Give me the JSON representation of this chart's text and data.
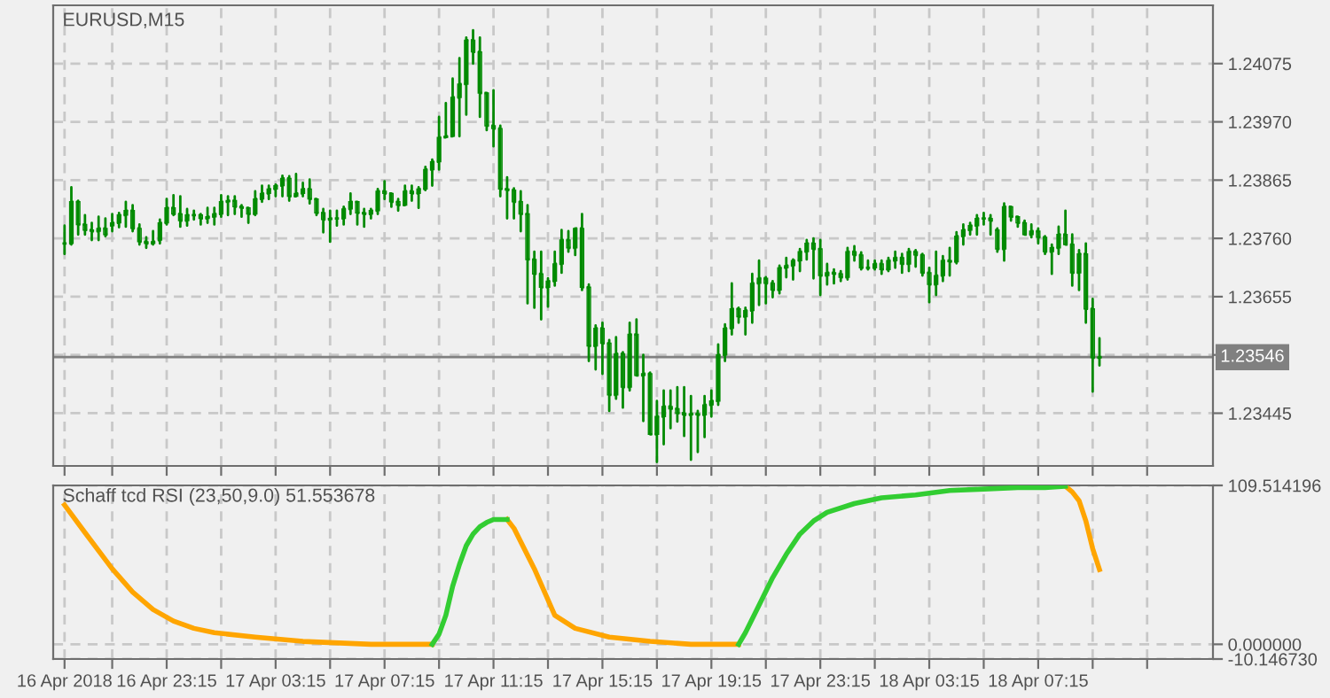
{
  "chart_data": [
    {
      "type": "candlestick",
      "title": "EURUSD,M15",
      "color": "#008a00",
      "grid": true,
      "tick_labels": "y",
      "x": [
        "2018-04-16T19:30",
        "2018-04-16T19:45",
        "2018-04-16T20:00",
        "2018-04-16T20:15",
        "2018-04-16T20:30",
        "2018-04-16T20:45",
        "2018-04-16T21:00",
        "2018-04-16T21:15",
        "2018-04-16T21:30",
        "2018-04-16T21:45",
        "2018-04-16T22:00",
        "2018-04-16T22:15",
        "2018-04-16T22:30",
        "2018-04-16T22:45",
        "2018-04-16T23:00",
        "2018-04-16T23:15",
        "2018-04-16T23:30",
        "2018-04-16T23:45",
        "2018-04-17T00:00",
        "2018-04-17T00:15",
        "2018-04-17T00:30",
        "2018-04-17T00:45",
        "2018-04-17T01:00",
        "2018-04-17T01:15",
        "2018-04-17T01:30",
        "2018-04-17T01:45",
        "2018-04-17T02:00",
        "2018-04-17T02:15",
        "2018-04-17T02:30",
        "2018-04-17T02:45",
        "2018-04-17T03:00",
        "2018-04-17T03:15",
        "2018-04-17T03:30",
        "2018-04-17T03:45",
        "2018-04-17T04:00",
        "2018-04-17T04:15",
        "2018-04-17T04:30",
        "2018-04-17T04:45",
        "2018-04-17T05:00",
        "2018-04-17T05:15",
        "2018-04-17T05:30",
        "2018-04-17T05:45",
        "2018-04-17T06:00",
        "2018-04-17T06:15",
        "2018-04-17T06:30",
        "2018-04-17T06:45",
        "2018-04-17T07:00",
        "2018-04-17T07:15",
        "2018-04-17T07:30",
        "2018-04-17T07:45",
        "2018-04-17T08:00",
        "2018-04-17T08:15",
        "2018-04-17T08:30",
        "2018-04-17T08:45",
        "2018-04-17T09:00",
        "2018-04-17T09:15",
        "2018-04-17T09:30",
        "2018-04-17T09:45",
        "2018-04-17T10:00",
        "2018-04-17T10:15",
        "2018-04-17T10:30",
        "2018-04-17T10:45",
        "2018-04-17T11:00",
        "2018-04-17T11:15",
        "2018-04-17T11:30",
        "2018-04-17T11:45",
        "2018-04-17T12:00",
        "2018-04-17T12:15",
        "2018-04-17T12:30",
        "2018-04-17T12:45",
        "2018-04-17T13:00",
        "2018-04-17T13:15",
        "2018-04-17T13:30",
        "2018-04-17T13:45",
        "2018-04-17T14:00",
        "2018-04-17T14:15",
        "2018-04-17T14:30",
        "2018-04-17T14:45",
        "2018-04-17T15:00",
        "2018-04-17T15:15",
        "2018-04-17T15:30",
        "2018-04-17T15:45",
        "2018-04-17T16:00",
        "2018-04-17T16:15",
        "2018-04-17T16:30",
        "2018-04-17T16:45",
        "2018-04-17T17:00",
        "2018-04-17T17:15",
        "2018-04-17T17:30",
        "2018-04-17T17:45",
        "2018-04-17T18:00",
        "2018-04-17T18:15",
        "2018-04-17T18:30",
        "2018-04-17T18:45",
        "2018-04-17T19:00",
        "2018-04-17T19:15",
        "2018-04-17T19:30",
        "2018-04-17T19:45",
        "2018-04-17T20:00",
        "2018-04-17T20:15",
        "2018-04-17T20:30",
        "2018-04-17T20:45",
        "2018-04-17T21:00",
        "2018-04-17T21:15",
        "2018-04-17T21:30",
        "2018-04-17T21:45",
        "2018-04-17T22:00",
        "2018-04-17T22:15",
        "2018-04-17T22:30",
        "2018-04-17T22:45",
        "2018-04-17T23:00",
        "2018-04-17T23:15",
        "2018-04-17T23:30",
        "2018-04-17T23:45",
        "2018-04-18T00:00",
        "2018-04-18T00:15",
        "2018-04-18T00:30",
        "2018-04-18T00:45",
        "2018-04-18T01:00",
        "2018-04-18T01:15",
        "2018-04-18T01:30",
        "2018-04-18T01:45",
        "2018-04-18T02:00",
        "2018-04-18T02:15",
        "2018-04-18T02:30",
        "2018-04-18T02:45",
        "2018-04-18T03:00",
        "2018-04-18T03:15",
        "2018-04-18T03:30",
        "2018-04-18T03:45",
        "2018-04-18T04:00",
        "2018-04-18T04:15",
        "2018-04-18T04:30",
        "2018-04-18T04:45",
        "2018-04-18T05:00",
        "2018-04-18T05:15",
        "2018-04-18T05:30",
        "2018-04-18T05:45",
        "2018-04-18T06:00",
        "2018-04-18T06:15",
        "2018-04-18T06:30",
        "2018-04-18T06:45",
        "2018-04-18T07:00",
        "2018-04-18T07:15",
        "2018-04-18T07:30",
        "2018-04-18T07:45",
        "2018-04-18T08:00",
        "2018-04-18T08:15",
        "2018-04-18T08:30",
        "2018-04-18T08:45",
        "2018-04-18T09:00",
        "2018-04-18T09:15",
        "2018-04-18T09:30"
      ],
      "ohlc": [
        [
          1.23751,
          1.23783,
          1.23732,
          1.23751
        ],
        [
          1.23751,
          1.23852,
          1.23749,
          1.23826
        ],
        [
          1.23826,
          1.23828,
          1.23767,
          1.23785
        ],
        [
          1.23785,
          1.23802,
          1.23767,
          1.23775
        ],
        [
          1.23775,
          1.23788,
          1.23757,
          1.23773
        ],
        [
          1.23773,
          1.23799,
          1.23757,
          1.23778
        ],
        [
          1.23778,
          1.23796,
          1.23764,
          1.23767
        ],
        [
          1.23783,
          1.23804,
          1.23773,
          1.23788
        ],
        [
          1.23788,
          1.23806,
          1.2378,
          1.23802
        ],
        [
          1.23802,
          1.23826,
          1.23781,
          1.2381
        ],
        [
          1.2381,
          1.2382,
          1.23773,
          1.23778
        ],
        [
          1.23778,
          1.23785,
          1.23749,
          1.23754
        ],
        [
          1.23754,
          1.23762,
          1.23743,
          1.23751
        ],
        [
          1.23751,
          1.23773,
          1.23749,
          1.23754
        ],
        [
          1.23757,
          1.23794,
          1.23751,
          1.23788
        ],
        [
          1.23788,
          1.23831,
          1.23785,
          1.23815
        ],
        [
          1.23815,
          1.23838,
          1.23802,
          1.23804
        ],
        [
          1.23804,
          1.23836,
          1.23781,
          1.23792
        ],
        [
          1.23792,
          1.23813,
          1.23783,
          1.23802
        ],
        [
          1.23802,
          1.2381,
          1.23794,
          1.23802
        ],
        [
          1.23802,
          1.23804,
          1.23785,
          1.23796
        ],
        [
          1.23796,
          1.23815,
          1.23788,
          1.23799
        ],
        [
          1.23799,
          1.23815,
          1.23785,
          1.23804
        ],
        [
          1.23804,
          1.23838,
          1.23799,
          1.23826
        ],
        [
          1.23826,
          1.23836,
          1.23802,
          1.23828
        ],
        [
          1.23828,
          1.23836,
          1.23804,
          1.23817
        ],
        [
          1.23817,
          1.2382,
          1.23799,
          1.23815
        ],
        [
          1.23815,
          1.23815,
          1.23788,
          1.23804
        ],
        [
          1.23804,
          1.23845,
          1.23802,
          1.23831
        ],
        [
          1.23831,
          1.23855,
          1.23826,
          1.23841
        ],
        [
          1.23841,
          1.23855,
          1.23831,
          1.23849
        ],
        [
          1.23849,
          1.23857,
          1.23836,
          1.23855
        ],
        [
          1.23855,
          1.23873,
          1.23836,
          1.23868
        ],
        [
          1.23868,
          1.23872,
          1.23828,
          1.23836
        ],
        [
          1.23836,
          1.23876,
          1.23836,
          1.23841
        ],
        [
          1.23841,
          1.2386,
          1.23836,
          1.23849
        ],
        [
          1.23849,
          1.23866,
          1.23823,
          1.23831
        ],
        [
          1.23831,
          1.23831,
          1.23802,
          1.23806
        ],
        [
          1.23806,
          1.23813,
          1.23771,
          1.23794
        ],
        [
          1.23794,
          1.2381,
          1.23754,
          1.23796
        ],
        [
          1.23796,
          1.2381,
          1.23783,
          1.23796
        ],
        [
          1.23796,
          1.23817,
          1.23785,
          1.23813
        ],
        [
          1.23813,
          1.23841,
          1.23804,
          1.23826
        ],
        [
          1.23826,
          1.23826,
          1.23785,
          1.23806
        ],
        [
          1.23806,
          1.23813,
          1.23781,
          1.23804
        ],
        [
          1.23804,
          1.23813,
          1.23796,
          1.2381
        ],
        [
          1.2381,
          1.23849,
          1.23804,
          1.23845
        ],
        [
          1.23845,
          1.23863,
          1.23831,
          1.23841
        ],
        [
          1.23841,
          1.23841,
          1.23817,
          1.23826
        ],
        [
          1.23826,
          1.23831,
          1.2381,
          1.2382
        ],
        [
          1.2382,
          1.23855,
          1.2382,
          1.23845
        ],
        [
          1.23845,
          1.23855,
          1.23828,
          1.23841
        ],
        [
          1.23841,
          1.23852,
          1.23815,
          1.23849
        ],
        [
          1.23849,
          1.23889,
          1.23847,
          1.23884
        ],
        [
          1.23884,
          1.23902,
          1.23855,
          1.23898
        ],
        [
          1.23898,
          1.23979,
          1.23884,
          1.23942
        ],
        [
          1.23942,
          1.24004,
          1.23942,
          1.23944
        ],
        [
          1.23944,
          1.24048,
          1.23944,
          1.24014
        ],
        [
          1.24014,
          1.24085,
          1.23944,
          1.24038
        ],
        [
          1.24038,
          1.24122,
          1.23983,
          1.24117
        ],
        [
          1.24117,
          1.24135,
          1.24075,
          1.24096
        ],
        [
          1.24096,
          1.24122,
          1.23979,
          1.24022
        ],
        [
          1.24022,
          1.24022,
          1.23955,
          1.23963
        ],
        [
          1.23963,
          1.24027,
          1.23926,
          1.23958
        ],
        [
          1.23958,
          1.23963,
          1.23836,
          1.23849
        ],
        [
          1.23849,
          1.2387,
          1.23796,
          1.23847
        ],
        [
          1.23847,
          1.2385,
          1.23796,
          1.23826
        ],
        [
          1.23826,
          1.23845,
          1.23773,
          1.23804
        ],
        [
          1.23804,
          1.2382,
          1.23643,
          1.23722
        ],
        [
          1.23722,
          1.23736,
          1.23635,
          1.23696
        ],
        [
          1.23696,
          1.23736,
          1.23614,
          1.23672
        ],
        [
          1.23672,
          1.23688,
          1.23637,
          1.23683
        ],
        [
          1.23683,
          1.23736,
          1.23675,
          1.23714
        ],
        [
          1.23714,
          1.23775,
          1.23698,
          1.23757
        ],
        [
          1.23757,
          1.23773,
          1.23736,
          1.23743
        ],
        [
          1.23743,
          1.23778,
          1.2373,
          1.23778
        ],
        [
          1.23778,
          1.23804,
          1.23667,
          1.23672
        ],
        [
          1.23672,
          1.23677,
          1.23539,
          1.23566
        ],
        [
          1.23566,
          1.23603,
          1.23524,
          1.23598
        ],
        [
          1.23598,
          1.23608,
          1.23516,
          1.23571
        ],
        [
          1.23571,
          1.23577,
          1.23449,
          1.23478
        ],
        [
          1.23478,
          1.23582,
          1.23471,
          1.23552
        ],
        [
          1.23552,
          1.23555,
          1.23455,
          1.23492
        ],
        [
          1.23492,
          1.23608,
          1.23486,
          1.23587
        ],
        [
          1.23587,
          1.23614,
          1.23513,
          1.23513
        ],
        [
          1.23513,
          1.2355,
          1.23431,
          1.23516
        ],
        [
          1.23516,
          1.23518,
          1.23407,
          1.23407
        ],
        [
          1.23407,
          1.23467,
          1.23357,
          1.23439
        ],
        [
          1.23439,
          1.23486,
          1.23389,
          1.23457
        ],
        [
          1.23457,
          1.23486,
          1.23418,
          1.23453
        ],
        [
          1.23453,
          1.23492,
          1.2343,
          1.23445
        ],
        [
          1.23445,
          1.23492,
          1.23404,
          1.23442
        ],
        [
          1.23442,
          1.23476,
          1.23361,
          1.23444
        ],
        [
          1.23444,
          1.23449,
          1.23375,
          1.23442
        ],
        [
          1.23442,
          1.23476,
          1.23402,
          1.2346
        ],
        [
          1.2346,
          1.23486,
          1.23439,
          1.23467
        ],
        [
          1.23467,
          1.23569,
          1.2346,
          1.2355
        ],
        [
          1.2355,
          1.23605,
          1.23539,
          1.23598
        ],
        [
          1.23598,
          1.23679,
          1.23587,
          1.23633
        ],
        [
          1.23633,
          1.23635,
          1.23608,
          1.23619
        ],
        [
          1.23619,
          1.23635,
          1.23587,
          1.2363
        ],
        [
          1.2363,
          1.23696,
          1.23608,
          1.23679
        ],
        [
          1.23679,
          1.2372,
          1.2364,
          1.23688
        ],
        [
          1.23688,
          1.2369,
          1.23643,
          1.23679
        ],
        [
          1.23679,
          1.23683,
          1.23654,
          1.23667
        ],
        [
          1.23667,
          1.23711,
          1.23661,
          1.23707
        ],
        [
          1.23707,
          1.23725,
          1.2369,
          1.23711
        ],
        [
          1.23711,
          1.23722,
          1.23686,
          1.2372
        ],
        [
          1.2372,
          1.23741,
          1.23701,
          1.23736
        ],
        [
          1.23736,
          1.23757,
          1.23722,
          1.23751
        ],
        [
          1.23751,
          1.2376,
          1.23688,
          1.23741
        ],
        [
          1.23741,
          1.23757,
          1.23658,
          1.23693
        ],
        [
          1.23693,
          1.23714,
          1.23677,
          1.23698
        ],
        [
          1.23698,
          1.23704,
          1.23679,
          1.23696
        ],
        [
          1.23696,
          1.23701,
          1.23683,
          1.2369
        ],
        [
          1.2369,
          1.23743,
          1.23686,
          1.23736
        ],
        [
          1.23736,
          1.23746,
          1.2372,
          1.2373
        ],
        [
          1.2373,
          1.23735,
          1.23704,
          1.23707
        ],
        [
          1.23707,
          1.2372,
          1.23704,
          1.23707
        ],
        [
          1.23707,
          1.2372,
          1.23704,
          1.23714
        ],
        [
          1.23714,
          1.2372,
          1.23696,
          1.23704
        ],
        [
          1.23704,
          1.23725,
          1.23701,
          1.2372
        ],
        [
          1.2372,
          1.23736,
          1.23707,
          1.23725
        ],
        [
          1.23725,
          1.23732,
          1.23698,
          1.23714
        ],
        [
          1.23714,
          1.23741,
          1.23701,
          1.23736
        ],
        [
          1.23736,
          1.23739,
          1.23709,
          1.2373
        ],
        [
          1.2373,
          1.23732,
          1.23693,
          1.23698
        ],
        [
          1.23698,
          1.23707,
          1.23645,
          1.23677
        ],
        [
          1.23677,
          1.23736,
          1.23658,
          1.23693
        ],
        [
          1.23693,
          1.23728,
          1.23683,
          1.2372
        ],
        [
          1.2372,
          1.23743,
          1.23693,
          1.23718
        ],
        [
          1.23718,
          1.23771,
          1.23715,
          1.23764
        ],
        [
          1.23764,
          1.23785,
          1.23749,
          1.23775
        ],
        [
          1.23775,
          1.23788,
          1.23767,
          1.23783
        ],
        [
          1.23783,
          1.23802,
          1.23767,
          1.23796
        ],
        [
          1.23796,
          1.23806,
          1.23785,
          1.23796
        ],
        [
          1.23796,
          1.23802,
          1.23767,
          1.23792
        ],
        [
          1.23775,
          1.23778,
          1.23736,
          1.23741
        ],
        [
          1.23741,
          1.23823,
          1.2372,
          1.23817
        ],
        [
          1.23817,
          1.23817,
          1.23792,
          1.23799
        ],
        [
          1.23799,
          1.23799,
          1.23781,
          1.23788
        ],
        [
          1.23788,
          1.23792,
          1.23767,
          1.23767
        ],
        [
          1.23767,
          1.23785,
          1.23762,
          1.23773
        ],
        [
          1.23773,
          1.23778,
          1.23751,
          1.23762
        ],
        [
          1.23762,
          1.23764,
          1.23732,
          1.23736
        ],
        [
          1.23736,
          1.23749,
          1.23696,
          1.23743
        ],
        [
          1.23743,
          1.23781,
          1.23732,
          1.23767
        ],
        [
          1.23767,
          1.2381,
          1.23749,
          1.23749
        ],
        [
          1.23749,
          1.23767,
          1.23675,
          1.23698
        ],
        [
          1.23698,
          1.23739,
          1.23667,
          1.23732
        ],
        [
          1.23732,
          1.23751,
          1.23608,
          1.23633
        ],
        [
          1.23633,
          1.23651,
          1.23484,
          1.23545
        ],
        [
          1.23545,
          1.2358,
          1.23531,
          1.23546
        ]
      ],
      "xlim": [
        "2018-04-16T19:05",
        "2018-04-18T13:40"
      ],
      "xticks": [
        {
          "value": "2018-04-16T19:30",
          "label": null
        },
        {
          "value": "2018-04-16T21:15",
          "label": null
        },
        {
          "value": "2018-04-16T23:15",
          "label": null
        },
        {
          "value": "2018-04-17T01:15",
          "label": null
        },
        {
          "value": "2018-04-17T03:15",
          "label": null
        },
        {
          "value": "2018-04-17T05:15",
          "label": null
        },
        {
          "value": "2018-04-17T07:15",
          "label": null
        },
        {
          "value": "2018-04-17T09:15",
          "label": null
        },
        {
          "value": "2018-04-17T11:15",
          "label": null
        },
        {
          "value": "2018-04-17T13:15",
          "label": null
        },
        {
          "value": "2018-04-17T15:15",
          "label": null
        },
        {
          "value": "2018-04-17T17:15",
          "label": null
        },
        {
          "value": "2018-04-17T19:15",
          "label": null
        },
        {
          "value": "2018-04-17T21:15",
          "label": null
        },
        {
          "value": "2018-04-17T23:15",
          "label": null
        },
        {
          "value": "2018-04-18T01:15",
          "label": null
        },
        {
          "value": "2018-04-18T03:15",
          "label": null
        },
        {
          "value": "2018-04-18T05:15",
          "label": null
        },
        {
          "value": "2018-04-18T07:15",
          "label": null
        },
        {
          "value": "2018-04-18T09:15",
          "label": null
        },
        {
          "value": "2018-04-18T11:15",
          "label": null
        }
      ],
      "ylim": [
        1.2335,
        1.2418
      ],
      "yticks": [
        1.23445,
        {
          "value": 1.2355,
          "label": null
        },
        1.23655,
        {
          "value": 1.2376,
          "label": "1.23760"
        },
        1.23865,
        {
          "value": 1.2397,
          "label": "1.23970"
        },
        1.24075
      ],
      "ref_lines": [
        {
          "axis": "y",
          "value": 1.23546,
          "label": "1.23546",
          "color": "#808080"
        }
      ]
    },
    {
      "type": "line",
      "title": "Schaff tcd RSI (23,50,9.0) 51.553678",
      "grid": true,
      "line_style": "solid",
      "marker": "none",
      "series": [
        {
          "color": "#ffa500",
          "x": [
            "2018-04-16T19:30",
            "2018-04-16T20:15",
            "2018-04-16T21:15",
            "2018-04-16T22:00",
            "2018-04-16T22:45",
            "2018-04-16T23:30",
            "2018-04-17T00:15",
            "2018-04-17T01:00",
            "2018-04-17T02:30",
            "2018-04-17T04:15",
            "2018-04-17T06:45",
            "2018-04-17T09:00",
            "2018-04-17T10:00",
            "2018-04-17T11:45",
            "2018-04-17T12:00",
            "2018-04-17T12:45",
            "2018-04-17T13:30",
            "2018-04-17T14:15",
            "2018-04-17T15:30",
            "2018-04-17T17:00",
            "2018-04-17T18:30",
            "2018-04-17T20:15",
            "2018-04-18T02:00",
            "2018-04-18T08:15",
            "2018-04-18T08:30",
            "2018-04-18T08:45",
            "2018-04-18T09:00",
            "2018-04-18T09:15",
            "2018-04-18T09:30"
          ],
          "values": [
            96,
            77,
            52,
            36,
            24,
            16,
            11,
            8,
            5,
            2,
            0,
            0,
            null,
            86,
            80,
            52,
            20,
            11,
            5,
            2,
            0,
            0,
            null,
            109,
            105,
            99,
            85,
            66,
            51.553678
          ]
        },
        {
          "color": "#32cd32",
          "x": [
            "2018-04-17T09:00",
            "2018-04-17T09:15",
            "2018-04-17T09:30",
            "2018-04-17T09:45",
            "2018-04-17T10:00",
            "2018-04-17T10:15",
            "2018-04-17T10:30",
            "2018-04-17T10:45",
            "2018-04-17T11:00",
            "2018-04-17T11:15",
            "2018-04-17T11:45",
            "2018-04-17T16:00",
            "2018-04-17T20:15",
            "2018-04-17T20:30",
            "2018-04-17T21:00",
            "2018-04-17T21:30",
            "2018-04-17T22:00",
            "2018-04-17T22:30",
            "2018-04-17T23:00",
            "2018-04-17T23:30",
            "2018-04-18T00:30",
            "2018-04-18T01:30",
            "2018-04-18T02:45",
            "2018-04-18T04:00",
            "2018-04-18T05:15",
            "2018-04-18T06:30",
            "2018-04-18T07:30",
            "2018-04-18T08:15"
          ],
          "values": [
            0,
            7,
            20,
            40,
            55,
            68,
            76,
            81,
            84,
            86,
            86,
            null,
            0,
            8,
            27,
            46,
            62,
            76,
            85,
            91,
            97,
            101,
            103,
            106,
            107,
            108,
            108,
            109
          ]
        }
      ],
      "xlim": [
        "2018-04-16T19:05",
        "2018-04-18T13:40"
      ],
      "xticks": [
        {
          "value": "2018-04-16T19:30",
          "label": "16 Apr 2018"
        },
        {
          "value": "2018-04-16T21:15",
          "label": null
        },
        {
          "value": "2018-04-16T23:15",
          "label": "16 Apr 23:15"
        },
        {
          "value": "2018-04-17T01:15",
          "label": null
        },
        {
          "value": "2018-04-17T03:15",
          "label": "17 Apr 03:15"
        },
        {
          "value": "2018-04-17T05:15",
          "label": null
        },
        {
          "value": "2018-04-17T07:15",
          "label": "17 Apr 07:15"
        },
        {
          "value": "2018-04-17T09:15",
          "label": null
        },
        {
          "value": "2018-04-17T11:15",
          "label": "17 Apr 11:15"
        },
        {
          "value": "2018-04-17T13:15",
          "label": null
        },
        {
          "value": "2018-04-17T15:15",
          "label": "17 Apr 15:15"
        },
        {
          "value": "2018-04-17T17:15",
          "label": null
        },
        {
          "value": "2018-04-17T19:15",
          "label": "17 Apr 19:15"
        },
        {
          "value": "2018-04-17T21:15",
          "label": null
        },
        {
          "value": "2018-04-17T23:15",
          "label": "17 Apr 23:15"
        },
        {
          "value": "2018-04-18T01:15",
          "label": null
        },
        {
          "value": "2018-04-18T03:15",
          "label": "18 Apr 03:15"
        },
        {
          "value": "2018-04-18T05:15",
          "label": null
        },
        {
          "value": "2018-04-18T07:15",
          "label": "18 Apr 07:15"
        },
        {
          "value": "2018-04-18T09:15",
          "label": null
        },
        {
          "value": "2018-04-18T11:15",
          "label": null
        }
      ],
      "ylim": [
        -10.14673,
        109.514196
      ],
      "yticks": [
        {
          "value": 109.514196,
          "label": "109.514196"
        },
        {
          "value": 0,
          "label": "0.000000"
        },
        {
          "value": -10.14673,
          "label": "-10.146730"
        }
      ]
    }
  ]
}
